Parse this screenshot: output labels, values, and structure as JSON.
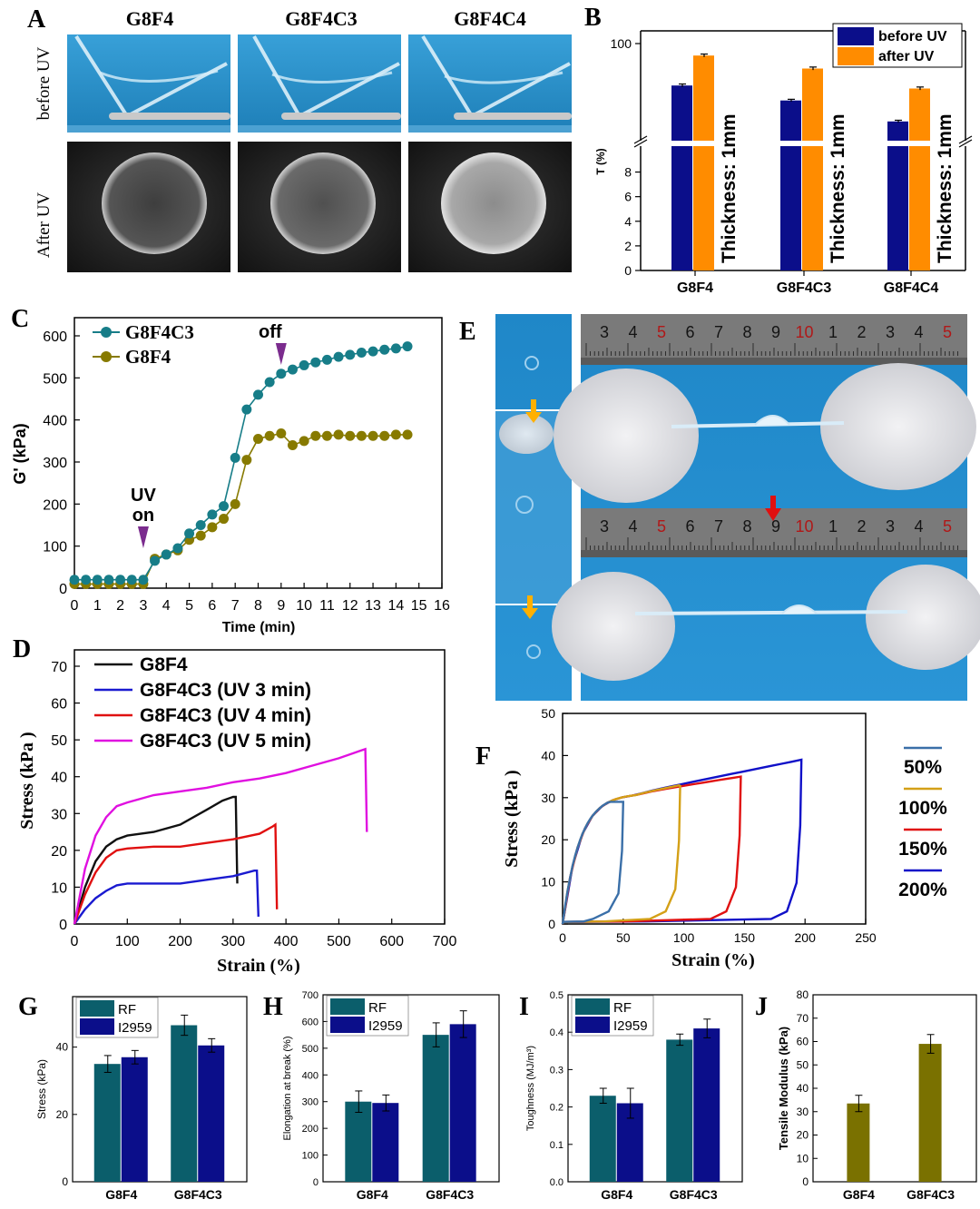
{
  "colors": {
    "navy": "#0b0e8a",
    "orange": "#ff8c00",
    "teal": "#0b5e6b",
    "olive": "#7a7100",
    "black": "#111111",
    "blue": "#1a1ad0",
    "red": "#e01010",
    "magenta": "#e010e0",
    "f50": "#3a6fa8",
    "f100": "#d4a017",
    "f150": "#e01010",
    "f200": "#1010c8",
    "tealLine": "#177d88",
    "oliveLine": "#877a00"
  },
  "panelA": {
    "letter": "A",
    "columns": [
      "G8F4",
      "G8F4C3",
      "G8F4C4"
    ],
    "rows": [
      "before UV",
      "After UV"
    ]
  },
  "panelE": {
    "letter": "E"
  },
  "chart_data": [
    {
      "panel": "B",
      "type": "bar",
      "ylabel": "T (%)",
      "categories": [
        "G8F4",
        "G8F4C3",
        "G8F4C4"
      ],
      "series": [
        {
          "name": "before UV",
          "values": [
            58,
            43,
            22
          ],
          "errors": [
            1.5,
            1.2,
            1.2
          ]
        },
        {
          "name": "after UV",
          "values": [
            88,
            75,
            55
          ],
          "errors": [
            1.5,
            1.5,
            1.5
          ]
        }
      ],
      "upper_axis": {
        "range": [
          0,
          100
        ],
        "ticks": [
          "100"
        ]
      },
      "lower_axis": {
        "range": [
          0,
          9
        ],
        "ticks": [
          "0",
          "2",
          "4",
          "6",
          "8"
        ]
      },
      "annotations": [
        "Thickness: 1mm",
        "Thickness: 1mm",
        "Thickness: 1mm"
      ],
      "legend": "top-right"
    },
    {
      "panel": "C",
      "type": "line",
      "xlabel": "Time (min)",
      "ylabel": "G' (kPa)",
      "xlim": [
        0,
        16
      ],
      "ylim": [
        0,
        600
      ],
      "xticks": [
        "0",
        "1",
        "2",
        "3",
        "4",
        "5",
        "6",
        "7",
        "8",
        "9",
        "10",
        "11",
        "12",
        "13",
        "14",
        "15",
        "16"
      ],
      "yticks": [
        "0",
        "100",
        "200",
        "300",
        "400",
        "500",
        "600"
      ],
      "series": [
        {
          "name": "G8F4C3",
          "x": [
            0,
            0.5,
            1,
            1.5,
            2,
            2.5,
            3,
            3.5,
            4,
            4.5,
            5,
            5.5,
            6,
            6.5,
            7,
            7.5,
            8,
            8.5,
            9,
            9.5,
            10,
            10.5,
            11,
            11.5,
            12,
            12.5,
            13,
            13.5,
            14,
            14.5
          ],
          "y": [
            20,
            20,
            20,
            20,
            20,
            20,
            20,
            65,
            80,
            95,
            130,
            150,
            175,
            195,
            310,
            425,
            460,
            490,
            510,
            520,
            530,
            537,
            543,
            550,
            555,
            560,
            563,
            567,
            570,
            575
          ]
        },
        {
          "name": "G8F4",
          "x": [
            0,
            0.5,
            1,
            1.5,
            2,
            2.5,
            3,
            3.5,
            4,
            4.5,
            5,
            5.5,
            6,
            6.5,
            7,
            7.5,
            8,
            8.5,
            9,
            9.5,
            10,
            10.5,
            11,
            11.5,
            12,
            12.5,
            13,
            13.5,
            14,
            14.5
          ],
          "y": [
            10,
            10,
            10,
            10,
            10,
            10,
            10,
            70,
            80,
            90,
            115,
            125,
            145,
            165,
            200,
            305,
            355,
            362,
            368,
            340,
            350,
            362,
            362,
            365,
            362,
            362,
            362,
            362,
            365,
            365
          ]
        }
      ],
      "annotations": [
        {
          "text": "UV",
          "text2": "on",
          "x": 3
        },
        {
          "text": "off",
          "x": 9
        }
      ],
      "legend": "top-left"
    },
    {
      "panel": "D",
      "type": "line",
      "xlabel": "Strain (%)",
      "ylabel": "Stress (kPa )",
      "xlim": [
        0,
        700
      ],
      "ylim": [
        0,
        70
      ],
      "xticks": [
        "0",
        "100",
        "200",
        "300",
        "400",
        "500",
        "600",
        "700"
      ],
      "yticks": [
        "0",
        "10",
        "20",
        "30",
        "40",
        "50",
        "60",
        "70"
      ],
      "series": [
        {
          "name": "G8F4",
          "x": [
            0,
            20,
            40,
            60,
            80,
            100,
            150,
            200,
            250,
            280,
            300,
            305,
            308
          ],
          "y": [
            0,
            10,
            17,
            21,
            23,
            24,
            25,
            27,
            31,
            33.5,
            34.5,
            34.5,
            11
          ]
        },
        {
          "name": "G8F4C3 (UV 3 min)",
          "x": [
            0,
            20,
            40,
            60,
            80,
            100,
            150,
            200,
            250,
            300,
            340,
            345,
            348
          ],
          "y": [
            0,
            4,
            7,
            9,
            10.5,
            11,
            11,
            11,
            12,
            13,
            14.5,
            14.5,
            2
          ]
        },
        {
          "name": "G8F4C3 (UV 4 min)",
          "x": [
            0,
            20,
            40,
            60,
            80,
            100,
            150,
            200,
            250,
            300,
            350,
            375,
            380,
            383
          ],
          "y": [
            0,
            8,
            14,
            18,
            20,
            20.5,
            21,
            21,
            22,
            23,
            24.5,
            26.5,
            27,
            4
          ]
        },
        {
          "name": "G8F4C3 (UV 5 min)",
          "x": [
            0,
            20,
            40,
            60,
            80,
            100,
            150,
            200,
            250,
            300,
            350,
            400,
            450,
            500,
            540,
            550,
            553
          ],
          "y": [
            0,
            15,
            24,
            29,
            32,
            33,
            35,
            36,
            37,
            38.5,
            39.5,
            41,
            43,
            45,
            47,
            47.5,
            25
          ]
        }
      ],
      "legend": "top-left"
    },
    {
      "panel": "F",
      "type": "line",
      "xlabel": "Strain (%)",
      "ylabel": "Stress (kPa )",
      "xlim": [
        0,
        250
      ],
      "ylim": [
        0,
        50
      ],
      "xticks": [
        "0",
        "50",
        "100",
        "150",
        "200",
        "250"
      ],
      "yticks": [
        "0",
        "10",
        "20",
        "30",
        "40",
        "50"
      ],
      "series": [
        {
          "name": "50%",
          "max_strain": 50,
          "max_stress": 29
        },
        {
          "name": "100%",
          "max_strain": 97,
          "max_stress": 33
        },
        {
          "name": "150%",
          "max_strain": 147,
          "max_stress": 35
        },
        {
          "name": "200%",
          "max_strain": 197,
          "max_stress": 39
        }
      ],
      "legend": "right"
    },
    {
      "panel": "G",
      "type": "bar",
      "ylabel": "Stress (kPa)",
      "categories": [
        "G8F4",
        "G8F4C3"
      ],
      "ylim": [
        0,
        55
      ],
      "yticks": [
        "0",
        "20",
        "40"
      ],
      "series": [
        {
          "name": "RF",
          "values": [
            35,
            46.5
          ],
          "errors": [
            2.5,
            3
          ]
        },
        {
          "name": "I2959",
          "values": [
            37,
            40.5
          ],
          "errors": [
            2,
            2
          ]
        }
      ]
    },
    {
      "panel": "H",
      "type": "bar",
      "ylabel": "Elongation at break (%)",
      "categories": [
        "G8F4",
        "G8F4C3"
      ],
      "ylim": [
        0,
        700
      ],
      "yticks": [
        "0",
        "100",
        "200",
        "300",
        "400",
        "500",
        "600",
        "700"
      ],
      "series": [
        {
          "name": "RF",
          "values": [
            300,
            550
          ],
          "errors": [
            40,
            45
          ]
        },
        {
          "name": "I2959",
          "values": [
            295,
            590
          ],
          "errors": [
            30,
            50
          ]
        }
      ]
    },
    {
      "panel": "I",
      "type": "bar",
      "ylabel": "Toughness (MJ/m³)",
      "categories": [
        "G8F4",
        "G8F4C3"
      ],
      "ylim": [
        0,
        0.5
      ],
      "yticks": [
        "0.0",
        "0.1",
        "0.2",
        "0.3",
        "0.4",
        "0.5"
      ],
      "series": [
        {
          "name": "RF",
          "values": [
            0.23,
            0.38
          ],
          "errors": [
            0.02,
            0.015
          ]
        },
        {
          "name": "I2959",
          "values": [
            0.21,
            0.41
          ],
          "errors": [
            0.04,
            0.025
          ]
        }
      ]
    },
    {
      "panel": "J",
      "type": "bar",
      "ylabel": "Tensile Modulus (kPa)",
      "categories": [
        "G8F4",
        "G8F4C3"
      ],
      "ylim": [
        0,
        80
      ],
      "yticks": [
        "0",
        "10",
        "20",
        "30",
        "40",
        "50",
        "60",
        "70",
        "80"
      ],
      "series": [
        {
          "name": "",
          "values": [
            33.5,
            59
          ],
          "errors": [
            3.5,
            4
          ]
        }
      ]
    }
  ]
}
